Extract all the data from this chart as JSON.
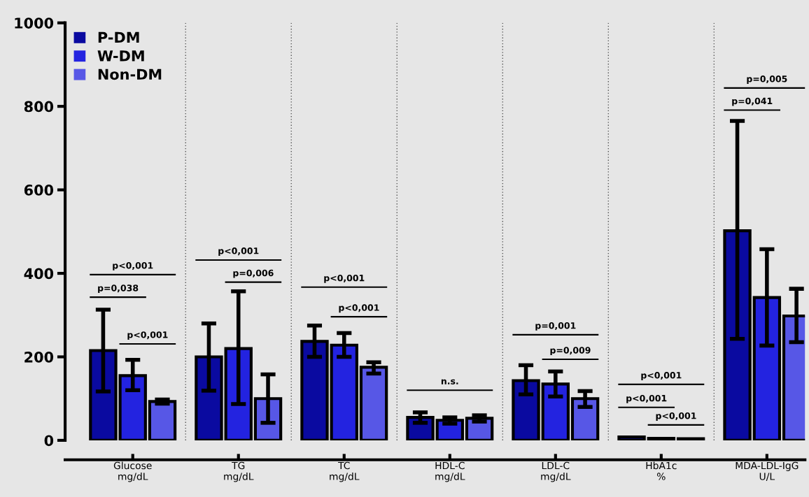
{
  "chart_data": {
    "type": "bar",
    "categories": [
      "Glucose\nmg/dL",
      "TG\nmg/dL",
      "TC\nmg/dL",
      "HDL-C\nmg/dL",
      "LDL-C\nmg/dL",
      "HbA1c\n%",
      "MDA-LDL-IgG\nU/L"
    ],
    "series": [
      {
        "name": "P-DM",
        "color": "#0a0aa0",
        "values": [
          215,
          200,
          237,
          55,
          143,
          8,
          502
        ],
        "errors": [
          [
            117,
            313
          ],
          [
            119,
            280
          ],
          [
            200,
            275
          ],
          [
            42,
            67
          ],
          [
            110,
            180
          ],
          null,
          [
            243,
            765
          ]
        ]
      },
      {
        "name": "W-DM",
        "color": "#2323e0",
        "values": [
          155,
          220,
          228,
          48,
          135,
          5,
          342
        ],
        "errors": [
          [
            120,
            193
          ],
          [
            87,
            357
          ],
          [
            200,
            257
          ],
          [
            40,
            55
          ],
          [
            105,
            165
          ],
          null,
          [
            227,
            458
          ]
        ]
      },
      {
        "name": "Non-DM",
        "color": "#5757e6",
        "values": [
          93,
          100,
          175,
          53,
          100,
          4,
          298
        ],
        "errors": [
          [
            88,
            98
          ],
          [
            42,
            158
          ],
          [
            160,
            187
          ],
          [
            45,
            60
          ],
          [
            80,
            118
          ],
          null,
          [
            235,
            363
          ]
        ]
      }
    ],
    "ylim": [
      0,
      1000
    ],
    "yticks": [
      0,
      200,
      400,
      600,
      800,
      1000
    ],
    "grid": false,
    "legend": "top left",
    "annotations": [
      "p<0,001",
      "p=0,038",
      "p<0,001",
      "p<0,001",
      "p=0,006",
      "p<0,001",
      "p<0,001",
      "n.s.",
      "p=0,001",
      "p=0,009",
      "p<0,001",
      "p<0,001",
      "p<0,001",
      "p=0,005",
      "p=0,041"
    ]
  }
}
